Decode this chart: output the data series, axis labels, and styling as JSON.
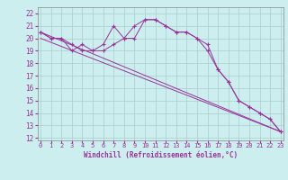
{
  "xlabel": "Windchill (Refroidissement éolien,°C)",
  "bg_color": "#cceeee",
  "grid_color": "#aacccc",
  "line_color": "#993399",
  "x_ticks": [
    0,
    1,
    2,
    3,
    4,
    5,
    6,
    7,
    8,
    9,
    10,
    11,
    12,
    13,
    14,
    15,
    16,
    17,
    18,
    19,
    20,
    21,
    22,
    23
  ],
  "y_ticks": [
    12,
    13,
    14,
    15,
    16,
    17,
    18,
    19,
    20,
    21,
    22
  ],
  "ylim": [
    11.8,
    22.5
  ],
  "xlim": [
    -0.3,
    23.3
  ],
  "series": [
    {
      "x": [
        0,
        1,
        2,
        3,
        4,
        5,
        6,
        7,
        8,
        9,
        10,
        11,
        12,
        13,
        14,
        15,
        16,
        17,
        18,
        19,
        20,
        21,
        22,
        23
      ],
      "y": [
        20.5,
        20.0,
        20.0,
        19.5,
        19.0,
        19.0,
        19.5,
        21.0,
        20.0,
        20.0,
        21.5,
        21.5,
        21.0,
        20.5,
        20.5,
        20.0,
        19.5,
        17.5,
        16.5,
        15.0,
        14.5,
        14.0,
        13.5,
        12.5
      ],
      "marker": true
    },
    {
      "x": [
        0,
        1,
        2,
        3,
        4,
        5,
        6,
        7,
        8,
        9,
        10,
        11,
        12,
        13,
        14,
        15,
        16,
        17,
        18,
        19,
        20,
        21,
        22,
        23
      ],
      "y": [
        20.5,
        20.0,
        20.0,
        19.0,
        19.5,
        19.0,
        19.0,
        19.5,
        20.0,
        21.0,
        21.5,
        21.5,
        21.0,
        20.5,
        20.5,
        20.0,
        19.0,
        17.5,
        16.5,
        15.0,
        14.5,
        14.0,
        13.5,
        12.5
      ],
      "marker": true
    },
    {
      "x": [
        0,
        23
      ],
      "y": [
        20.5,
        12.5
      ],
      "marker": false
    },
    {
      "x": [
        0,
        23
      ],
      "y": [
        20.0,
        12.5
      ],
      "marker": false
    }
  ]
}
